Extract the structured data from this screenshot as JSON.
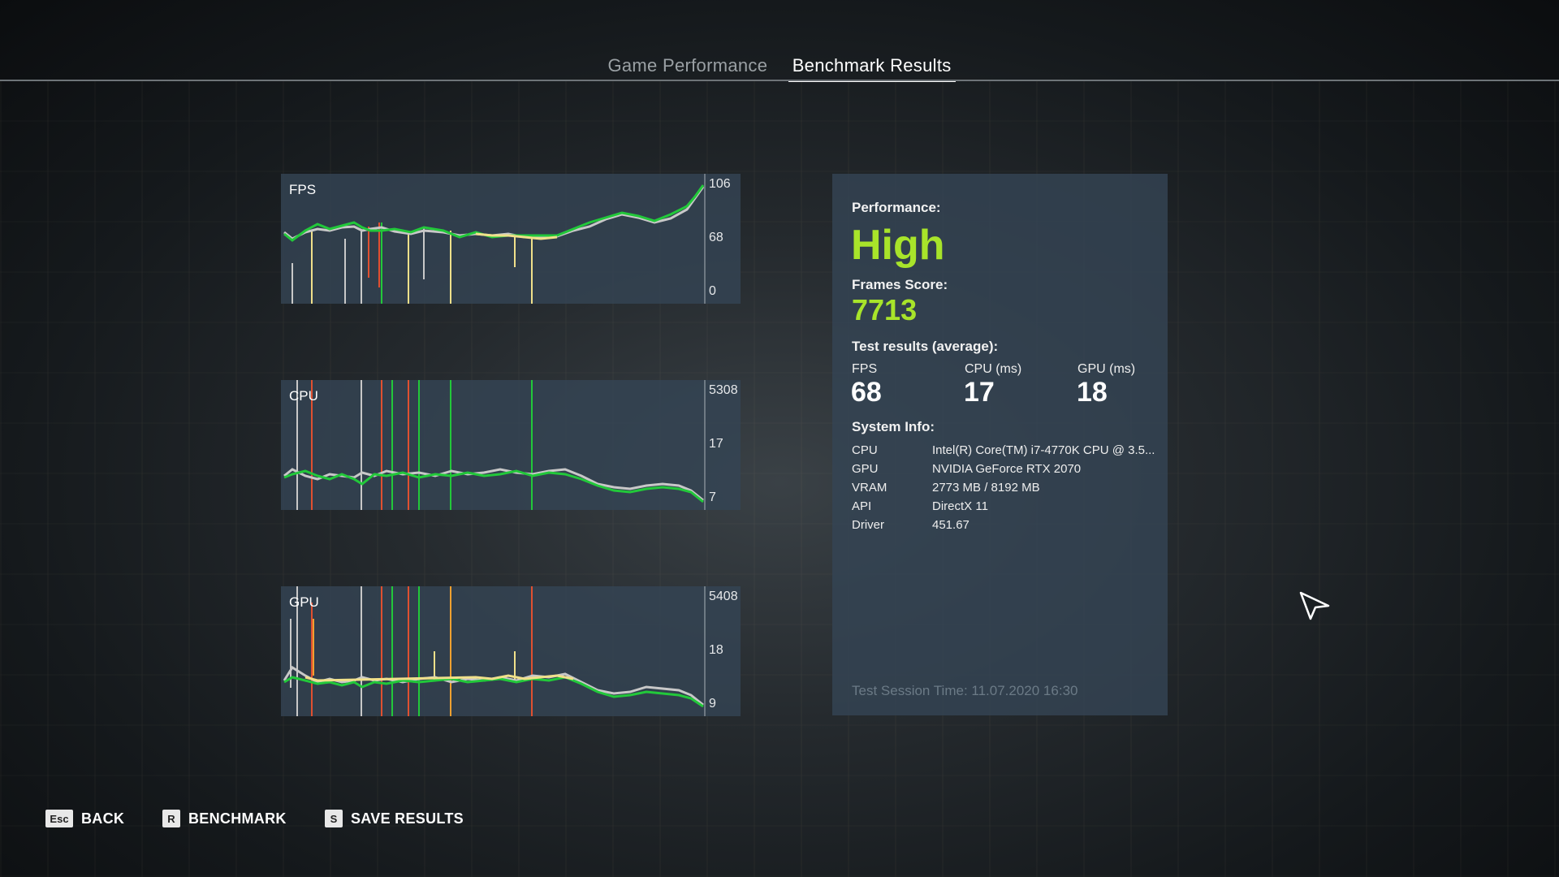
{
  "tabs": [
    {
      "label": "Game Performance",
      "active": false
    },
    {
      "label": "Benchmark Results",
      "active": true
    }
  ],
  "charts": [
    {
      "label": "FPS",
      "ticks": {
        "top": "106",
        "mid": "68",
        "bottom": "0"
      }
    },
    {
      "label": "CPU",
      "ticks": {
        "top": "5308",
        "mid": "17",
        "bottom": "7"
      }
    },
    {
      "label": "GPU",
      "ticks": {
        "top": "5408",
        "mid": "18",
        "bottom": "9"
      }
    }
  ],
  "results": {
    "performance_label": "Performance:",
    "performance_value": "High",
    "frames_label": "Frames Score:",
    "frames_value": "7713",
    "test_label": "Test results (average):",
    "fps_label": "FPS",
    "fps_value": "68",
    "cpu_label": "CPU (ms)",
    "cpu_value": "17",
    "gpu_label": "GPU (ms)",
    "gpu_value": "18"
  },
  "system": {
    "title": "System Info:",
    "rows": [
      {
        "key": "CPU",
        "value": "Intel(R) Core(TM) i7-4770K CPU @ 3.5..."
      },
      {
        "key": "GPU",
        "value": "NVIDIA GeForce RTX 2070"
      },
      {
        "key": "VRAM",
        "value": "2773 MB / 8192 MB"
      },
      {
        "key": "API",
        "value": "DirectX 11"
      },
      {
        "key": "Driver",
        "value": "451.67"
      }
    ]
  },
  "session_time": "Test Session Time: 11.07.2020 16:30",
  "footer": [
    {
      "key": "Esc",
      "label": "BACK"
    },
    {
      "key": "R",
      "label": "BENCHMARK"
    },
    {
      "key": "S",
      "label": "SAVE RESULTS"
    }
  ],
  "colors": {
    "accent_green": "#a8e42a",
    "line_green": "#22c83a",
    "line_yellow": "#f0e08a",
    "line_gray": "#c8c8c8",
    "line_red": "#e05030",
    "line_orange": "#f0a030"
  },
  "icons": [
    "cursor-arrow-icon"
  ]
}
